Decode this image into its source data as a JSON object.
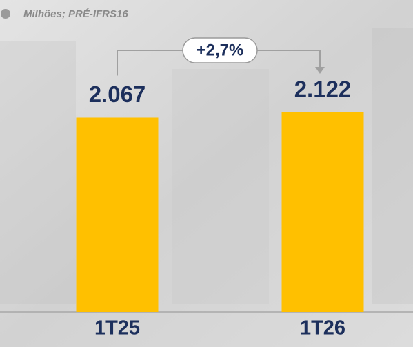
{
  "chart_data": {
    "type": "bar",
    "subtitle": "Milhões; PRÉ-IFRS16",
    "categories": [
      "1T25",
      "1T26"
    ],
    "values": [
      2067,
      2122
    ],
    "value_labels": [
      "2.067",
      "2.122"
    ],
    "color": "#ffc000",
    "annotation": "+2,7%"
  }
}
